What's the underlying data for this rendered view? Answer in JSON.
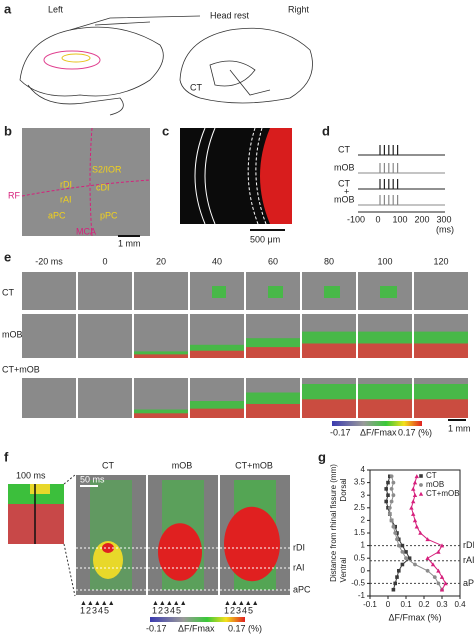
{
  "panel_labels": [
    "a",
    "b",
    "c",
    "d",
    "e",
    "f",
    "g"
  ],
  "a": {
    "left": "Left",
    "right": "Right",
    "head_rest": "Head rest",
    "ct": "CT"
  },
  "b": {
    "labels": [
      "S2/IOR",
      "rDI",
      "cDI",
      "rAI",
      "aPC",
      "pPC"
    ],
    "rf": "RF",
    "mca": "MCA",
    "scale": "1 mm"
  },
  "c": {
    "scale": "500 μm"
  },
  "d": {
    "rows": [
      "CT",
      "mOB"
    ],
    "combined": [
      "CT",
      "+",
      "mOB"
    ],
    "ticks": [
      "-100",
      "0",
      "100",
      "200",
      "300"
    ],
    "unit": "(ms)"
  },
  "e": {
    "times": [
      "-20 ms",
      "0",
      "20",
      "40",
      "60",
      "80",
      "100",
      "120"
    ],
    "rows": [
      "CT",
      "mOB",
      "CT+mOB"
    ],
    "colorbar": {
      "min": "-0.17",
      "label": "ΔF/Fmax",
      "max": "0.17 (%)"
    },
    "scale": "1 mm"
  },
  "f": {
    "inset": "100 ms",
    "columns": [
      "CT",
      "mOB",
      "CT+mOB"
    ],
    "scale": "50 ms",
    "regions": [
      "rDI",
      "rAI",
      "aPC"
    ],
    "stim_numbers": "12345",
    "colorbar": {
      "min": "-0.17",
      "label": "ΔF/Fmax",
      "max": "0.17 (%)"
    }
  },
  "chart_data": {
    "type": "line",
    "xlabel": "ΔF/Fmax (%)",
    "ylabel": "Distance from rhinal fissure (mm)",
    "ylabel_low": "Ventral",
    "ylabel_high": "Dorsal",
    "xlim": [
      -0.1,
      0.4
    ],
    "xticks": [
      -0.1,
      0,
      0.1,
      0.2,
      0.3,
      0.4
    ],
    "ylim": [
      -1,
      4
    ],
    "yticks": [
      -1,
      -0.5,
      0,
      0.5,
      1,
      1.5,
      2,
      2.5,
      3,
      3.5,
      4
    ],
    "y": [
      -0.75,
      -0.5,
      -0.25,
      0,
      0.25,
      0.5,
      0.75,
      1,
      1.25,
      1.5,
      1.75,
      2,
      2.25,
      2.5,
      2.75,
      3,
      3.25,
      3.5,
      3.75
    ],
    "series": [
      {
        "name": "CT",
        "color": "#3a3a3a",
        "values": [
          0.03,
          0.04,
          0.05,
          0.06,
          0.08,
          0.12,
          0.1,
          0.08,
          0.06,
          0.05,
          0.04,
          0.02,
          0.01,
          0.0,
          -0.01,
          0.0,
          -0.01,
          0.0,
          0.01
        ]
      },
      {
        "name": "mOB",
        "color": "#8c8c8c",
        "values": [
          0.3,
          0.28,
          0.26,
          0.22,
          0.15,
          0.1,
          0.08,
          0.06,
          0.05,
          0.04,
          0.03,
          0.02,
          0.01,
          0.01,
          0.02,
          0.03,
          0.02,
          0.03,
          0.02
        ]
      },
      {
        "name": "CT+mOB",
        "color": "#d6207c",
        "values": [
          0.3,
          0.32,
          0.3,
          0.28,
          0.25,
          0.22,
          0.28,
          0.3,
          0.22,
          0.18,
          0.16,
          0.15,
          0.14,
          0.13,
          0.14,
          0.15,
          0.14,
          0.15,
          0.16
        ]
      }
    ],
    "region_lines": [
      {
        "label": "rDI",
        "value": 1
      },
      {
        "label": "rAI",
        "value": 0.4
      },
      {
        "label": "aPC",
        "value": -0.5
      }
    ],
    "legend": "upper right"
  }
}
